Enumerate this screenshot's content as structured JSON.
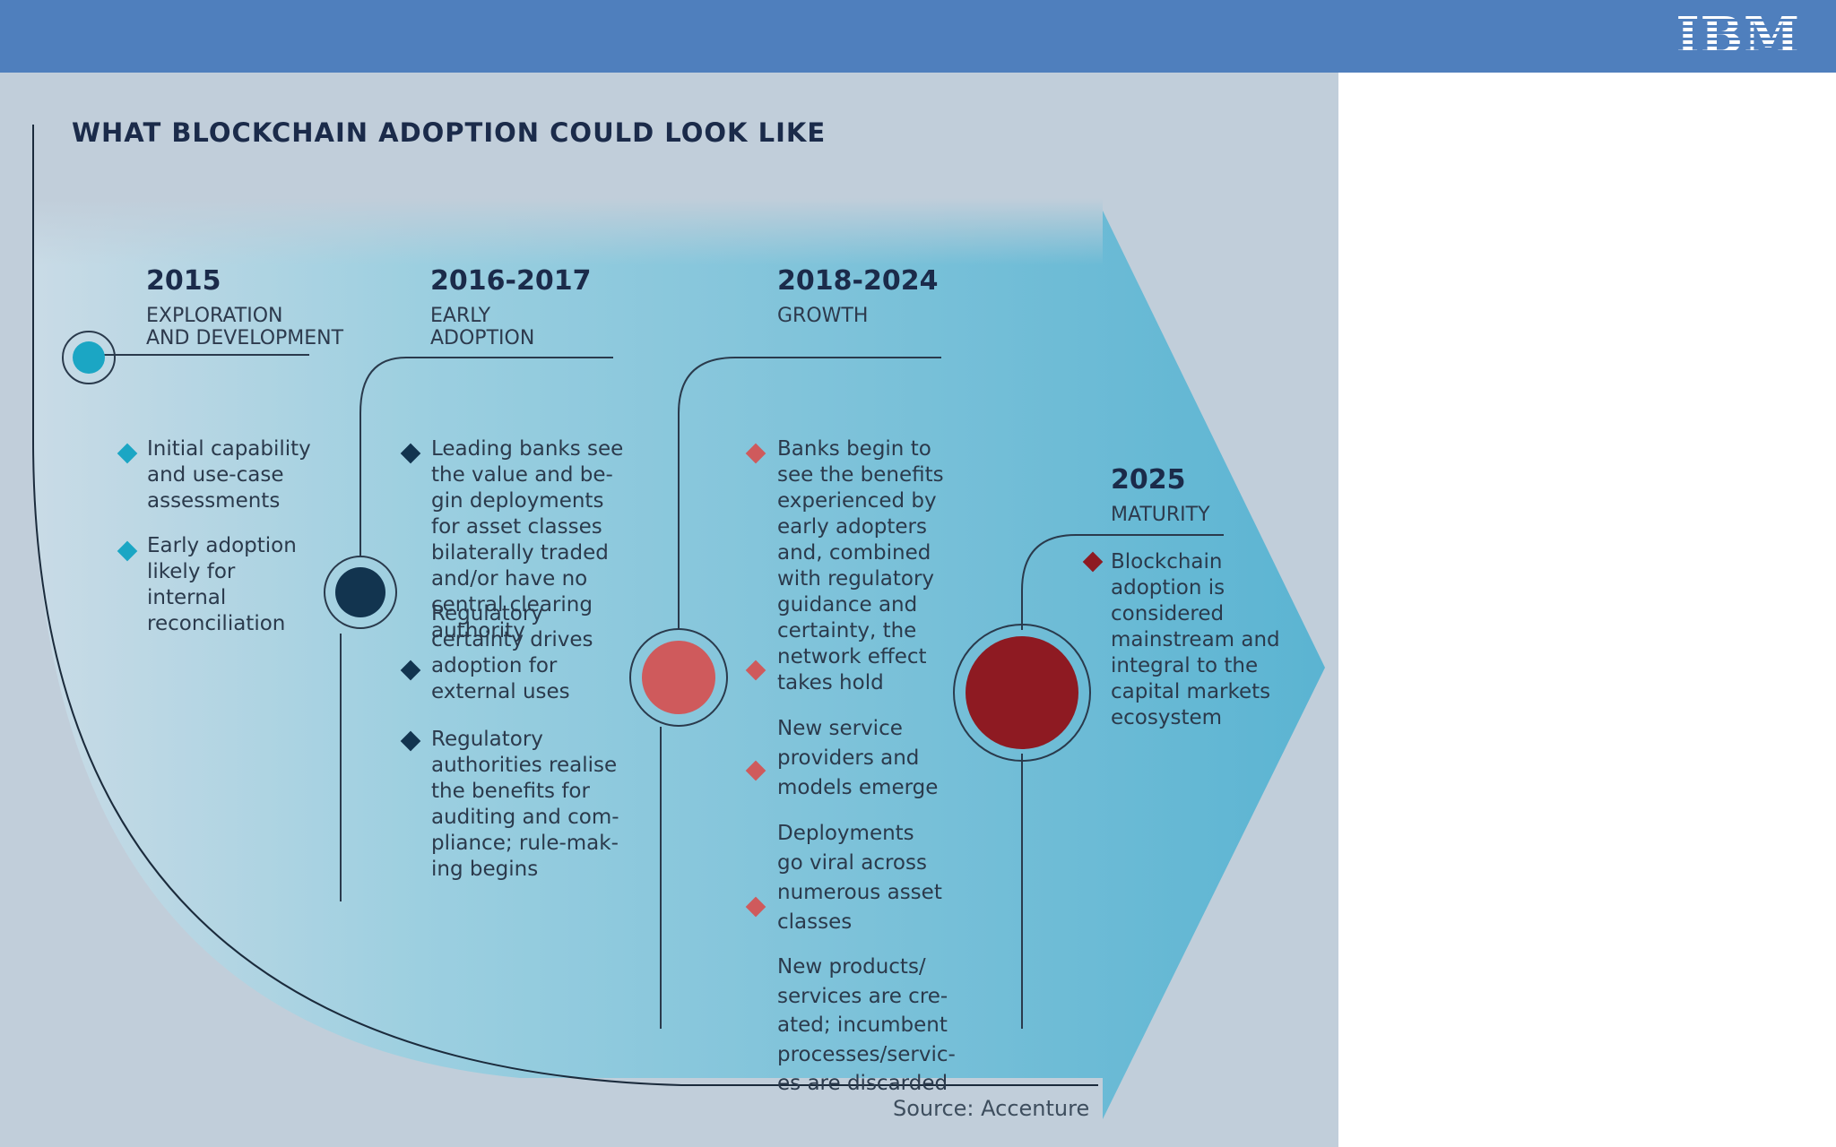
{
  "header": {
    "logo_text": "IBM"
  },
  "title": "WHAT BLOCKCHAIN ADOPTION COULD LOOK LIKE",
  "colors": {
    "top_bar": "#4f7fbd",
    "panel_bg": "#c1ceda",
    "arrow_dark": "#5bb4d2",
    "stage1_marker": "#1ba6c4",
    "stage2_marker": "#12344f",
    "stage3_marker": "#cf5a5c",
    "stage4_marker": "#8e1a22"
  },
  "stages": [
    {
      "year": "2015",
      "label_lines": [
        "EXPLORATION",
        "AND DEVELOPMENT"
      ],
      "bullets": [
        {
          "lines": [
            "Initial capability",
            "and use-case",
            "assessments"
          ]
        },
        {
          "lines": [
            "Early adoption",
            "likely for",
            "internal",
            "reconciliation"
          ]
        }
      ]
    },
    {
      "year": "2016-2017",
      "label_lines": [
        "EARLY",
        "ADOPTION"
      ],
      "bullets": [
        {
          "lines": [
            "Leading banks see",
            "the value and be-",
            "gin deployments",
            "for asset classes",
            "bilaterally traded",
            "and/or have no",
            "central clearing",
            "authority"
          ]
        },
        {
          "lines": [
            "Regulatory",
            "certainty drives",
            "adoption for",
            "external uses"
          ]
        },
        {
          "lines": [
            "Regulatory",
            "authorities realise",
            "the benefits for",
            "auditing and com-",
            "pliance; rule-mak-",
            "ing begins"
          ]
        }
      ]
    },
    {
      "year": "2018-2024",
      "label_lines": [
        "GROWTH"
      ],
      "bullets": [
        {
          "lines": [
            "Banks begin to",
            "see the benefits",
            "experienced by",
            "early adopters",
            "and, combined",
            "with regulatory",
            "guidance and",
            "certainty, the",
            "network effect",
            "takes hold"
          ]
        },
        {
          "lines": [
            "New service",
            "providers and",
            "models emerge"
          ]
        },
        {
          "lines": [
            "Deployments",
            "go viral across",
            "numerous asset",
            "classes"
          ]
        },
        {
          "lines": [
            "New products/",
            "services are cre-",
            "ated; incumbent",
            "processes/servic-",
            "es are discarded"
          ]
        }
      ]
    },
    {
      "year": "2025",
      "label_lines": [
        "MATURITY"
      ],
      "bullets": [
        {
          "lines": [
            "Blockchain",
            "adoption is",
            "considered",
            "mainstream and",
            "integral to the",
            "capital markets",
            "ecosystem"
          ]
        }
      ]
    }
  ],
  "source": "Source: Accenture"
}
